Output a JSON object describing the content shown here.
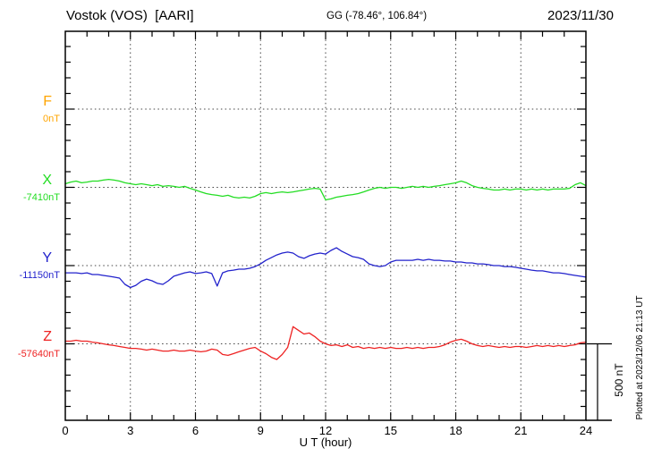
{
  "header": {
    "station_title": "Vostok (VOS)  [AARI]",
    "coords": "GG (-78.46°, 106.84°)",
    "date": "2023/11/30"
  },
  "components": [
    {
      "label": "F",
      "base_label": "0nT",
      "color": "#FFA500"
    },
    {
      "label": "X",
      "base_label": "-7410nT",
      "color": "#22DD22"
    },
    {
      "label": "Y",
      "base_label": "-11150nT",
      "color": "#2222CC"
    },
    {
      "label": "Z",
      "base_label": "-57640nT",
      "color": "#EE2222"
    }
  ],
  "axes": {
    "xlabel": "U T (hour)",
    "x_ticks": [
      "0",
      "3",
      "6",
      "9",
      "12",
      "15",
      "18",
      "21",
      "24"
    ],
    "scale_bar_label": "500 nT"
  },
  "plotted_note": "Plotted at 2023/12/06 21:13 UT",
  "chart_data": {
    "type": "line",
    "title": "Vostok (VOS) [AARI] magnetogram, 2023/11/30",
    "xlabel": "U T (hour)",
    "x_range": [
      0,
      24
    ],
    "x_step": 0.25,
    "values_unit": "nT offset from component base value",
    "y_scale_nT_per_division": 500,
    "grid": "dotted vertical lines every 3 h; dotted horizontal line at each component baseline",
    "series": [
      {
        "name": "F",
        "base_value_nT": 0,
        "color": "#FFA500",
        "values": []
      },
      {
        "name": "X",
        "base_value_nT": -7410,
        "color": "#22DD22",
        "values": [
          23,
          34,
          40,
          29,
          34,
          40,
          40,
          46,
          51,
          46,
          40,
          29,
          23,
          17,
          23,
          17,
          11,
          17,
          6,
          11,
          6,
          0,
          6,
          -6,
          -17,
          -29,
          -40,
          -46,
          -51,
          -57,
          -51,
          -63,
          -68,
          -63,
          -68,
          -57,
          -40,
          -34,
          -40,
          -34,
          -29,
          -34,
          -29,
          -23,
          -17,
          -11,
          -6,
          -11,
          -80,
          -74,
          -63,
          -57,
          -51,
          -46,
          -40,
          -29,
          -17,
          -6,
          0,
          -6,
          0,
          0,
          -6,
          0,
          6,
          0,
          6,
          0,
          6,
          11,
          17,
          23,
          29,
          40,
          29,
          11,
          0,
          -6,
          -11,
          -17,
          -17,
          -11,
          -17,
          -11,
          -11,
          -17,
          -11,
          -17,
          -11,
          -17,
          -11,
          -11,
          -11,
          -6,
          17,
          29,
          11
        ]
      },
      {
        "name": "Y",
        "base_value_nT": -11150,
        "color": "#2222CC",
        "values": [
          -46,
          -46,
          -46,
          -51,
          -46,
          -57,
          -57,
          -63,
          -68,
          -74,
          -80,
          -120,
          -140,
          -126,
          -100,
          -86,
          -97,
          -114,
          -120,
          -97,
          -68,
          -57,
          -46,
          -40,
          -51,
          -46,
          -40,
          -51,
          -131,
          -46,
          -34,
          -29,
          -23,
          -23,
          -17,
          -6,
          11,
          34,
          51,
          68,
          80,
          86,
          80,
          57,
          46,
          63,
          74,
          80,
          74,
          97,
          114,
          91,
          74,
          57,
          51,
          40,
          11,
          0,
          -6,
          0,
          23,
          34,
          34,
          34,
          34,
          40,
          34,
          40,
          34,
          34,
          29,
          29,
          23,
          23,
          17,
          17,
          11,
          11,
          6,
          0,
          0,
          -6,
          -6,
          -11,
          -17,
          -23,
          -29,
          -34,
          -34,
          -40,
          -46,
          -46,
          -51,
          -57,
          -63,
          -68,
          -74
        ]
      },
      {
        "name": "Z",
        "base_value_nT": -57640,
        "color": "#EE2222",
        "values": [
          17,
          17,
          23,
          17,
          17,
          11,
          6,
          0,
          -6,
          -11,
          -17,
          -23,
          -29,
          -29,
          -34,
          -40,
          -34,
          -40,
          -46,
          -46,
          -40,
          -46,
          -46,
          -40,
          -46,
          -51,
          -46,
          -34,
          -40,
          -68,
          -74,
          -63,
          -51,
          -40,
          -29,
          -23,
          -46,
          -63,
          -86,
          -100,
          -68,
          -23,
          110,
          86,
          63,
          69,
          46,
          17,
          0,
          -11,
          -6,
          -17,
          -6,
          -23,
          -17,
          -29,
          -23,
          -29,
          -23,
          -29,
          -23,
          -29,
          -29,
          -23,
          -29,
          -23,
          -29,
          -23,
          -23,
          -17,
          -6,
          11,
          23,
          29,
          17,
          0,
          -11,
          -17,
          -11,
          -17,
          -23,
          -17,
          -23,
          -17,
          -17,
          -23,
          -17,
          -11,
          -17,
          -11,
          -17,
          -11,
          -17,
          -11,
          -6,
          6,
          11
        ]
      }
    ]
  }
}
